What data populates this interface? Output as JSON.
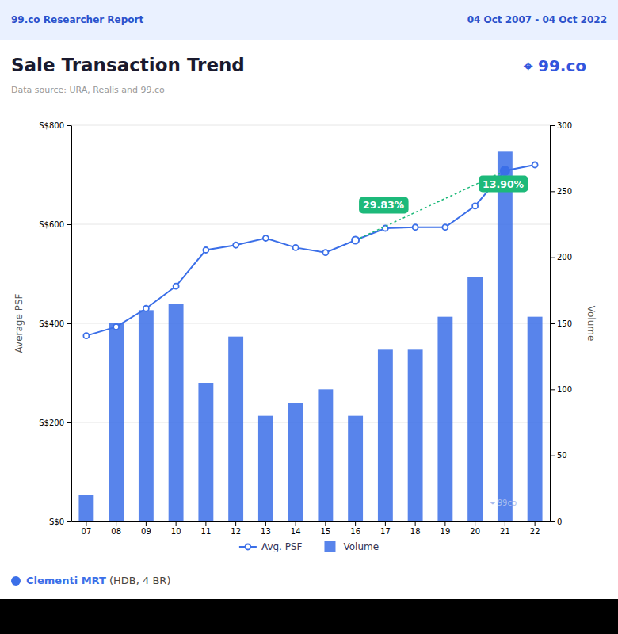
{
  "chart_data": {
    "type": "bar",
    "title": "Sale Transaction Trend",
    "subtitle": "Data source: URA, Realis and 99.co",
    "header_left": "99.co Researcher Report",
    "header_right": "04 Oct 2007 - 04 Oct 2022",
    "logo": "⌖ 99.co",
    "watermark": "⌖ 99co",
    "footer_label": "Clementi MRT",
    "footer_note": " (HDB, 4 BR)",
    "categories": [
      "07",
      "08",
      "09",
      "10",
      "11",
      "12",
      "13",
      "14",
      "15",
      "16",
      "17",
      "18",
      "19",
      "20",
      "21",
      "22"
    ],
    "series": [
      {
        "name": "Avg. PSF",
        "type": "line",
        "color": "#3B6FE8",
        "marker": "circle",
        "values": [
          375,
          393,
          430,
          475,
          548,
          558,
          572,
          553,
          543,
          568,
          592,
          594,
          594,
          637,
          708,
          720
        ]
      },
      {
        "name": "Volume",
        "type": "bar",
        "color": "#3B6FE8",
        "axis": "y2",
        "values": [
          20,
          150,
          160,
          165,
          105,
          140,
          80,
          90,
          100,
          80,
          130,
          130,
          155,
          185,
          280,
          155
        ]
      }
    ],
    "ylabel": "Average PSF",
    "y2label": "Volume",
    "ylim": [
      0,
      800
    ],
    "yticks": [
      {
        "value": 0,
        "label": "S$0"
      },
      {
        "value": 200,
        "label": "S$200"
      },
      {
        "value": 400,
        "label": "S$400"
      },
      {
        "value": 600,
        "label": "S$600"
      },
      {
        "value": 800,
        "label": "S$800"
      }
    ],
    "y2lim": [
      0,
      300
    ],
    "y2ticks": [
      0,
      50,
      100,
      150,
      200,
      250,
      300
    ],
    "grid": true,
    "legend": "bottom",
    "trend_line": {
      "start": "16",
      "end": "21",
      "color": "#1DB97A",
      "line_style": "dotted"
    },
    "annotations": [
      {
        "text": "29.83%",
        "x": "16",
        "y": 637
      },
      {
        "text": "13.90%",
        "x": "20",
        "y": 680
      }
    ]
  }
}
